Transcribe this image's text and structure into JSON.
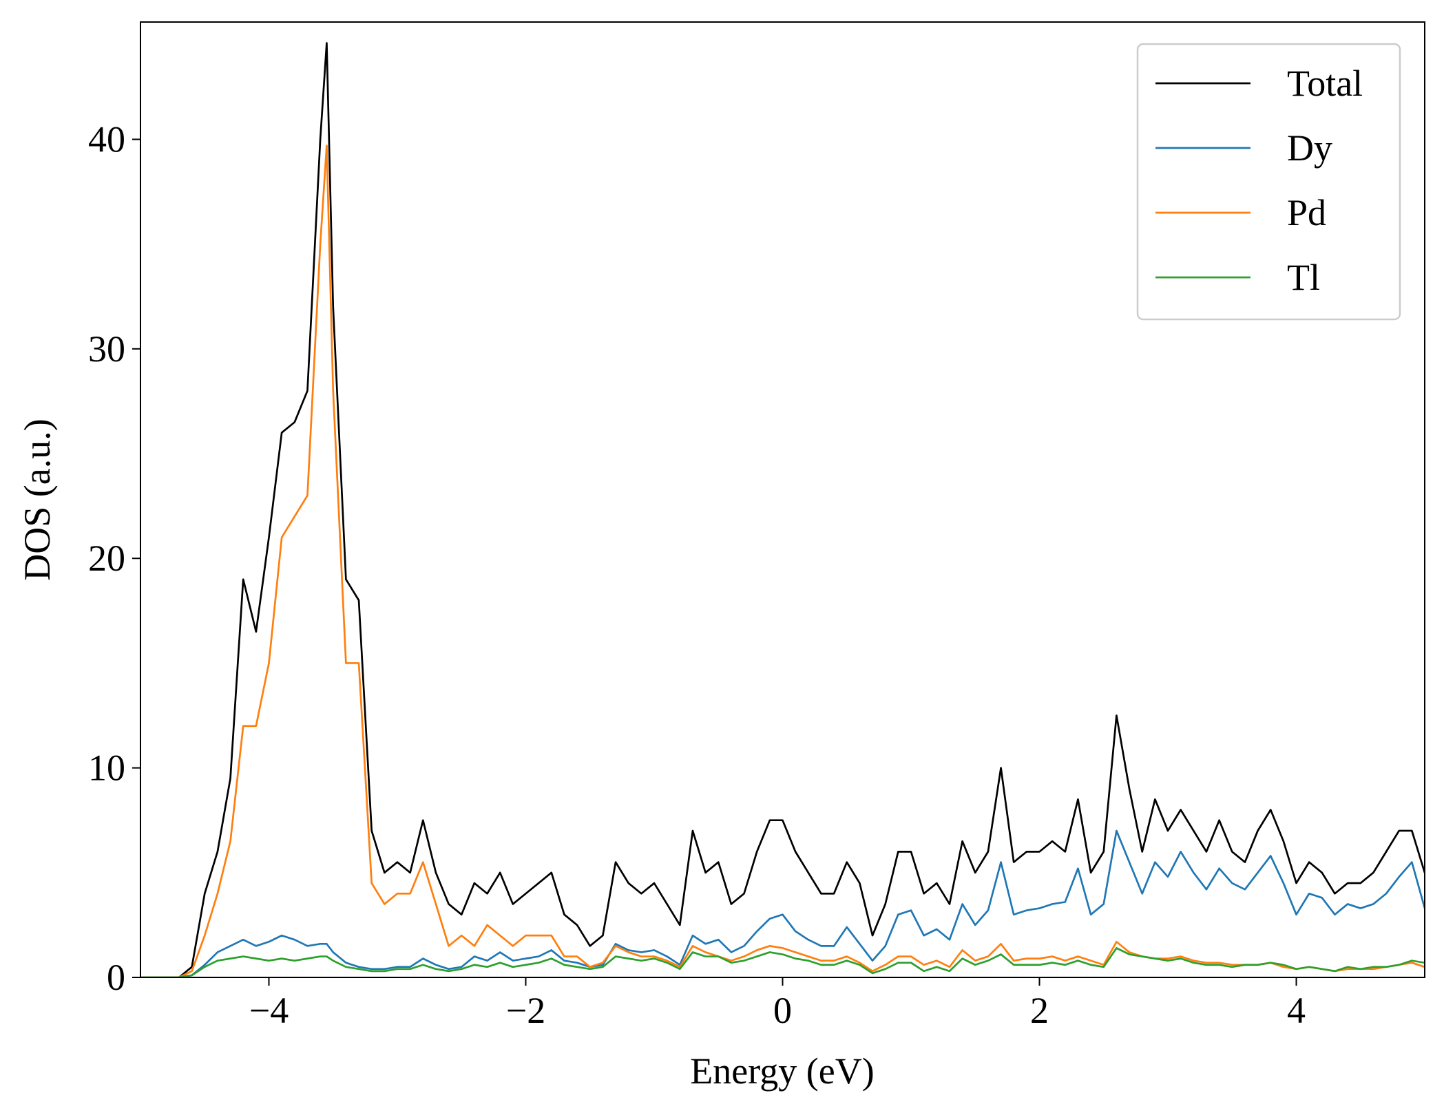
{
  "chart_data": {
    "type": "line",
    "x_label": "Energy (eV)",
    "y_label": "DOS (a.u.)",
    "x": [
      -5.0,
      -4.9,
      -4.8,
      -4.7,
      -4.6,
      -4.5,
      -4.4,
      -4.3,
      -4.2,
      -4.1,
      -4.0,
      -3.9,
      -3.8,
      -3.7,
      -3.6,
      -3.55,
      -3.5,
      -3.4,
      -3.3,
      -3.2,
      -3.1,
      -3.0,
      -2.9,
      -2.8,
      -2.7,
      -2.6,
      -2.5,
      -2.4,
      -2.3,
      -2.2,
      -2.1,
      -2.0,
      -1.9,
      -1.8,
      -1.7,
      -1.6,
      -1.5,
      -1.4,
      -1.3,
      -1.2,
      -1.1,
      -1.0,
      -0.9,
      -0.8,
      -0.7,
      -0.6,
      -0.5,
      -0.4,
      -0.3,
      -0.2,
      -0.1,
      0.0,
      0.1,
      0.2,
      0.3,
      0.4,
      0.5,
      0.6,
      0.7,
      0.8,
      0.9,
      1.0,
      1.1,
      1.2,
      1.3,
      1.4,
      1.5,
      1.6,
      1.7,
      1.8,
      1.9,
      2.0,
      2.1,
      2.2,
      2.3,
      2.4,
      2.5,
      2.6,
      2.7,
      2.8,
      2.9,
      3.0,
      3.1,
      3.2,
      3.3,
      3.4,
      3.5,
      3.6,
      3.7,
      3.8,
      3.9,
      4.0,
      4.1,
      4.2,
      4.3,
      4.4,
      4.5,
      4.6,
      4.7,
      4.8,
      4.9,
      5.0
    ],
    "series": [
      {
        "name": "Total",
        "color": "#000000",
        "values": [
          0,
          0,
          0,
          0,
          0.5,
          4,
          6,
          9.5,
          19,
          16.5,
          21,
          26,
          26.5,
          28,
          40,
          44.6,
          32,
          19,
          18,
          7,
          5,
          5.5,
          5,
          7.5,
          5,
          3.5,
          3,
          4.5,
          4,
          5,
          3.5,
          4,
          4.5,
          5,
          3,
          2.5,
          1.5,
          2,
          5.5,
          4.5,
          4,
          4.5,
          3.5,
          2.5,
          7,
          5,
          5.5,
          3.5,
          4,
          6,
          7.5,
          7.5,
          6,
          5,
          4,
          4,
          5.5,
          4.5,
          2,
          3.5,
          6,
          6,
          4,
          4.5,
          3.5,
          6.5,
          5,
          6,
          10,
          5.5,
          6,
          6,
          6.5,
          6,
          8.5,
          5,
          6,
          12.5,
          9,
          6,
          8.5,
          7,
          8,
          7,
          6,
          7.5,
          6,
          5.5,
          7,
          8,
          6.5,
          4.5,
          5.5,
          5,
          4,
          4.5,
          4.5,
          5,
          6,
          7,
          7,
          5
        ]
      },
      {
        "name": "Dy",
        "color": "#1f77b4",
        "values": [
          0,
          0,
          0,
          0,
          0.1,
          0.6,
          1.2,
          1.5,
          1.8,
          1.5,
          1.7,
          2,
          1.8,
          1.5,
          1.6,
          1.6,
          1.2,
          0.7,
          0.5,
          0.4,
          0.4,
          0.5,
          0.5,
          0.9,
          0.6,
          0.4,
          0.5,
          1,
          0.8,
          1.2,
          0.8,
          0.9,
          1,
          1.3,
          0.8,
          0.7,
          0.5,
          0.6,
          1.6,
          1.3,
          1.2,
          1.3,
          1,
          0.6,
          2,
          1.6,
          1.8,
          1.2,
          1.5,
          2.2,
          2.8,
          3,
          2.2,
          1.8,
          1.5,
          1.5,
          2.4,
          1.6,
          0.8,
          1.5,
          3,
          3.2,
          2,
          2.3,
          1.8,
          3.5,
          2.5,
          3.2,
          5.5,
          3,
          3.2,
          3.3,
          3.5,
          3.6,
          5.2,
          3,
          3.5,
          7,
          5.5,
          4,
          5.5,
          4.8,
          6,
          5,
          4.2,
          5.2,
          4.5,
          4.2,
          5,
          5.8,
          4.5,
          3,
          4,
          3.8,
          3,
          3.5,
          3.3,
          3.5,
          4,
          4.8,
          5.5,
          3.3
        ]
      },
      {
        "name": "Pd",
        "color": "#ff7f0e",
        "values": [
          0,
          0,
          0,
          0,
          0.3,
          2,
          4,
          6.5,
          12,
          12,
          15,
          21,
          22,
          23,
          35,
          39.7,
          28,
          15,
          15,
          4.5,
          3.5,
          4,
          4,
          5.5,
          3.5,
          1.5,
          2,
          1.5,
          2.5,
          2,
          1.5,
          2,
          2,
          2,
          1,
          1,
          0.5,
          0.7,
          1.5,
          1.2,
          1,
          1,
          0.8,
          0.5,
          1.5,
          1.2,
          1,
          0.8,
          1,
          1.3,
          1.5,
          1.4,
          1.2,
          1,
          0.8,
          0.8,
          1,
          0.7,
          0.3,
          0.6,
          1,
          1,
          0.6,
          0.8,
          0.5,
          1.3,
          0.8,
          1,
          1.6,
          0.8,
          0.9,
          0.9,
          1,
          0.8,
          1,
          0.8,
          0.6,
          1.7,
          1.2,
          1,
          0.9,
          0.9,
          1,
          0.8,
          0.7,
          0.7,
          0.6,
          0.6,
          0.6,
          0.7,
          0.5,
          0.4,
          0.5,
          0.4,
          0.3,
          0.4,
          0.4,
          0.4,
          0.5,
          0.6,
          0.7,
          0.5
        ]
      },
      {
        "name": "Tl",
        "color": "#2ca02c",
        "values": [
          0,
          0,
          0,
          0,
          0.1,
          0.5,
          0.8,
          0.9,
          1,
          0.9,
          0.8,
          0.9,
          0.8,
          0.9,
          1,
          1,
          0.8,
          0.5,
          0.4,
          0.3,
          0.3,
          0.4,
          0.4,
          0.6,
          0.4,
          0.3,
          0.4,
          0.6,
          0.5,
          0.7,
          0.5,
          0.6,
          0.7,
          0.9,
          0.6,
          0.5,
          0.4,
          0.5,
          1,
          0.9,
          0.8,
          0.9,
          0.7,
          0.4,
          1.2,
          1,
          1,
          0.7,
          0.8,
          1,
          1.2,
          1.1,
          0.9,
          0.8,
          0.6,
          0.6,
          0.8,
          0.6,
          0.2,
          0.4,
          0.7,
          0.7,
          0.3,
          0.5,
          0.3,
          0.9,
          0.6,
          0.8,
          1.1,
          0.6,
          0.6,
          0.6,
          0.7,
          0.6,
          0.8,
          0.6,
          0.5,
          1.4,
          1.1,
          1,
          0.9,
          0.8,
          0.9,
          0.7,
          0.6,
          0.6,
          0.5,
          0.6,
          0.6,
          0.7,
          0.6,
          0.4,
          0.5,
          0.4,
          0.3,
          0.5,
          0.4,
          0.5,
          0.5,
          0.6,
          0.8,
          0.7
        ]
      }
    ],
    "xlim": [
      -5,
      5
    ],
    "xticks": [
      {
        "value": -4,
        "label": "−4"
      },
      {
        "value": -2,
        "label": "−2"
      },
      0,
      2,
      4
    ],
    "ylim": [
      0,
      45.6
    ],
    "yticks": [
      0,
      10,
      20,
      30,
      40
    ],
    "legend": "upper right"
  }
}
